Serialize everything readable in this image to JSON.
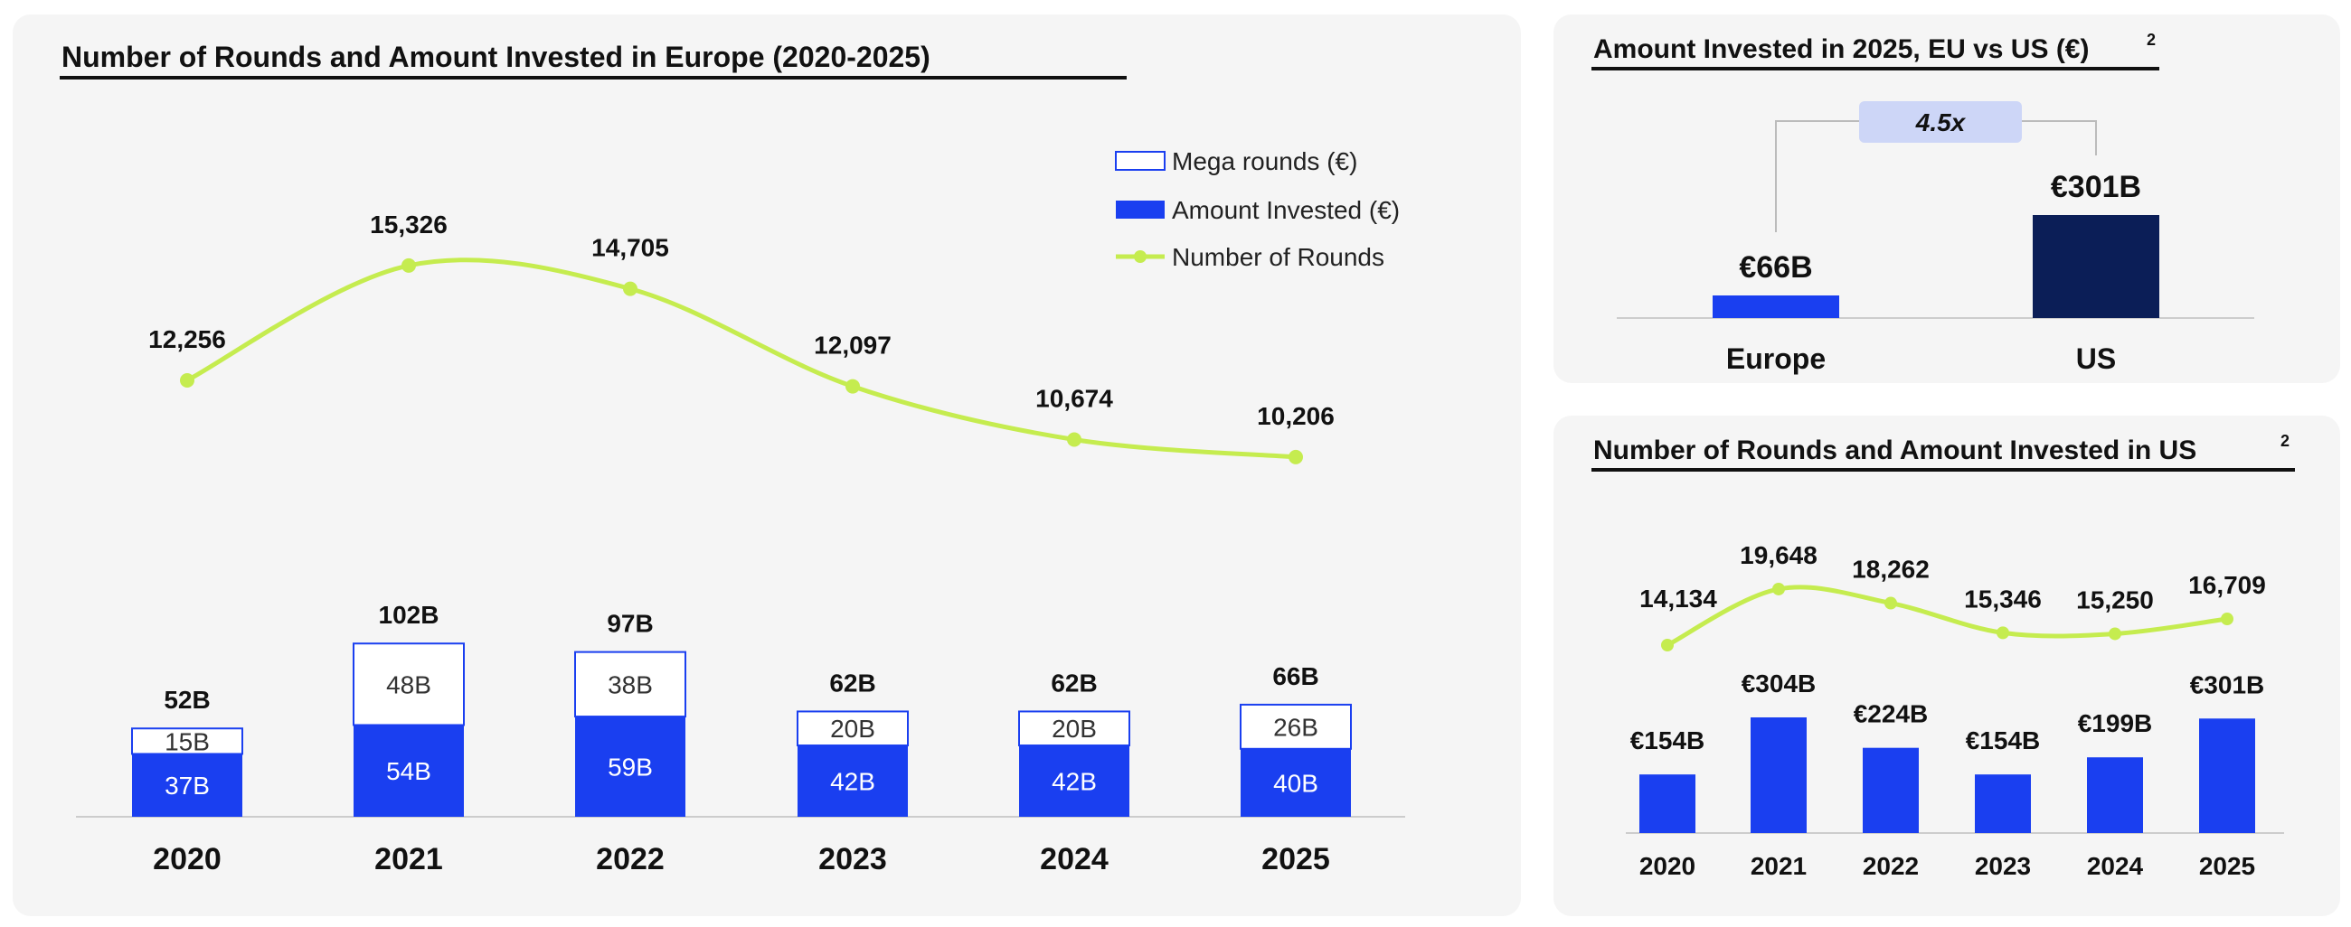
{
  "colors": {
    "blue": "#1a3ff0",
    "navy": "#0b1e57",
    "line": "#c5ec4f",
    "badge": "#cdd6f7",
    "panel": "#f5f5f5"
  },
  "chart_data": [
    {
      "id": "europe",
      "type": "bar",
      "title": "Number of Rounds and Amount Invested in Europe (2020-2025)",
      "categories": [
        "2020",
        "2021",
        "2022",
        "2023",
        "2024",
        "2025"
      ],
      "series": [
        {
          "name": "Amount Invested (€)",
          "kind": "bar-stack-bottom",
          "values": [
            37,
            54,
            59,
            42,
            42,
            40
          ],
          "labels": [
            "37B",
            "54B",
            "59B",
            "42B",
            "42B",
            "40B"
          ]
        },
        {
          "name": "Mega rounds (€)",
          "kind": "bar-stack-top",
          "values": [
            15,
            48,
            38,
            20,
            20,
            26
          ],
          "labels": [
            "15B",
            "48B",
            "38B",
            "20B",
            "20B",
            "26B"
          ]
        },
        {
          "name": "Number of Rounds",
          "kind": "line",
          "values": [
            12256,
            15326,
            14705,
            12097,
            10674,
            10206
          ],
          "labels": [
            "12,256",
            "15,326",
            "14,705",
            "12,097",
            "10,674",
            "10,206"
          ]
        }
      ],
      "totals": [
        "52B",
        "102B",
        "97B",
        "62B",
        "62B",
        "66B"
      ],
      "legend": [
        "Mega rounds (€)",
        "Amount Invested (€)",
        "Number of Rounds"
      ],
      "legend_position": "top-right",
      "bar_ylim": [
        0,
        110
      ],
      "line_ylim": [
        6000,
        16000
      ]
    },
    {
      "id": "eu-vs-us",
      "type": "bar",
      "title": "Amount Invested in 2025, EU vs US (€)",
      "title_superscript": "2",
      "categories": [
        "Europe",
        "US"
      ],
      "values": [
        66,
        301
      ],
      "labels": [
        "€66B",
        "€301B"
      ],
      "ratio_label": "4.5x",
      "ylim": [
        0,
        301
      ]
    },
    {
      "id": "us",
      "type": "bar",
      "title": "Number of Rounds and Amount Invested in US",
      "title_superscript": "2",
      "categories": [
        "2020",
        "2021",
        "2022",
        "2023",
        "2024",
        "2025"
      ],
      "series": [
        {
          "name": "Amount Invested",
          "kind": "bar",
          "values": [
            154,
            304,
            224,
            154,
            199,
            301
          ],
          "labels": [
            "€154B",
            "€304B",
            "€224B",
            "€154B",
            "€199B",
            "€301B"
          ]
        },
        {
          "name": "Number of Rounds",
          "kind": "line",
          "values": [
            14134,
            19648,
            18262,
            15346,
            15250,
            16709
          ],
          "labels": [
            "14,134",
            "19,648",
            "18,262",
            "15,346",
            "15,250",
            "16,709"
          ]
        }
      ],
      "bar_ylim": [
        0,
        304
      ],
      "line_ylim": [
        14134,
        19648
      ]
    }
  ]
}
